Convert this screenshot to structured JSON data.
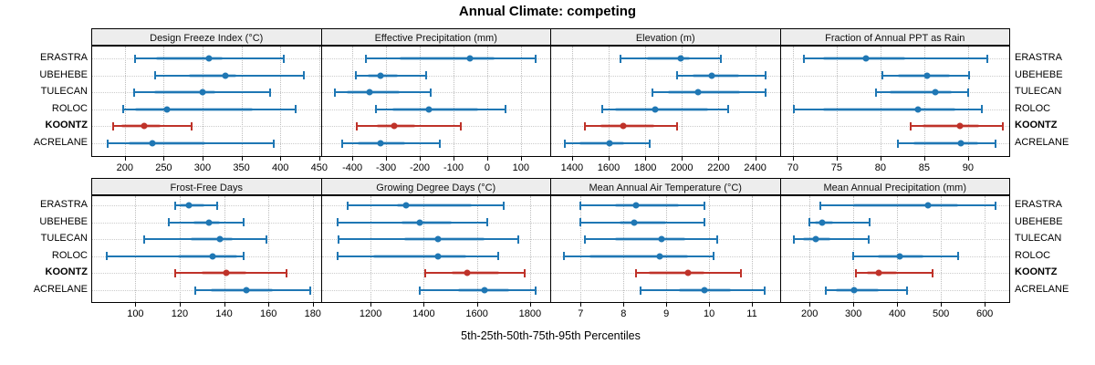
{
  "title": "Annual Climate: competing",
  "caption": "5th-25th-50th-75th-95th Percentiles",
  "colors": {
    "series_blue": "#1f77b4",
    "series_blue_band": "rgba(31,119,180,0.32)",
    "highlight_red": "#bf3229",
    "highlight_red_band": "rgba(191,50,41,0.32)",
    "strip_background": "#ededed",
    "grid": "#bdbdbd",
    "border": "#000000"
  },
  "chart_data": {
    "type": "percentile-dotplot",
    "percentile_labels": [
      "5th",
      "25th",
      "50th",
      "75th",
      "95th"
    ],
    "sites": [
      "ERASTRA",
      "UBEHEBE",
      "TULECAN",
      "ROLOC",
      "KOONTZ",
      "ACRELANE"
    ],
    "highlight_site": "KOONTZ",
    "legend_position": "none",
    "grid_on": true,
    "panels": [
      {
        "title": "Design Freeze Index (°C)",
        "row": 0,
        "col": 0,
        "domain": [
          158,
          452
        ],
        "ticks": [
          200,
          250,
          300,
          350,
          400,
          450
        ],
        "series": [
          [
            213,
            240,
            308,
            326,
            405
          ],
          [
            239,
            282,
            329,
            344,
            430
          ],
          [
            212,
            238,
            300,
            317,
            387
          ],
          [
            198,
            213,
            254,
            365,
            420
          ],
          [
            185,
            196,
            225,
            246,
            286
          ],
          [
            178,
            205,
            236,
            304,
            392
          ]
        ]
      },
      {
        "title": "Effective Precipitation (mm)",
        "row": 0,
        "col": 1,
        "domain": [
          -491,
          187
        ],
        "ticks": [
          -400,
          -300,
          -200,
          -100,
          0,
          100
        ],
        "series": [
          [
            -360,
            -260,
            -51,
            23,
            145
          ],
          [
            -390,
            -353,
            -316,
            -265,
            -182
          ],
          [
            -452,
            -416,
            -349,
            -260,
            -168
          ],
          [
            -331,
            -281,
            -173,
            -26,
            54
          ],
          [
            -386,
            -326,
            -277,
            -214,
            -78
          ],
          [
            -430,
            -385,
            -316,
            -242,
            -140
          ]
        ]
      },
      {
        "title": "Elevation (m)",
        "row": 0,
        "col": 2,
        "domain": [
          1286,
          2534
        ],
        "ticks": [
          1400,
          1600,
          1800,
          2000,
          2200,
          2400
        ],
        "series": [
          [
            1665,
            1810,
            1995,
            2045,
            2215
          ],
          [
            1975,
            2060,
            2165,
            2310,
            2455
          ],
          [
            1840,
            1925,
            2090,
            2315,
            2455
          ],
          [
            1565,
            1635,
            1855,
            2145,
            2255
          ],
          [
            1470,
            1555,
            1680,
            1850,
            1975
          ],
          [
            1360,
            1440,
            1605,
            1685,
            1825
          ]
        ]
      },
      {
        "title": "Fraction of Annual PPT as Rain",
        "row": 0,
        "col": 3,
        "domain": [
          68.6,
          94.7
        ],
        "ticks": [
          70,
          75,
          80,
          85,
          90
        ],
        "series": [
          [
            71.3,
            73.4,
            78.3,
            82.8,
            92.2
          ],
          [
            80.2,
            82.0,
            85.3,
            87.9,
            90.1
          ],
          [
            79.5,
            81.0,
            86.3,
            88.1,
            90.0
          ],
          [
            70.1,
            73.4,
            84.3,
            88.6,
            91.6
          ],
          [
            83.4,
            84.8,
            89.1,
            91.3,
            94.0
          ],
          [
            82.0,
            83.8,
            89.2,
            91.2,
            93.1
          ]
        ]
      },
      {
        "title": "Frost-Free Days",
        "row": 1,
        "col": 0,
        "domain": [
          80.5,
          183.6
        ],
        "ticks": [
          100,
          120,
          140,
          160,
          180
        ],
        "series": [
          [
            118,
            120,
            124,
            131,
            137
          ],
          [
            115,
            126,
            133,
            138,
            149
          ],
          [
            104,
            125,
            138,
            144,
            159
          ],
          [
            87,
            119,
            135,
            146,
            149
          ],
          [
            118,
            130,
            141,
            150,
            168
          ],
          [
            127,
            134,
            150,
            162,
            179
          ]
        ]
      },
      {
        "title": "Growing Degree Days (°C)",
        "row": 1,
        "col": 1,
        "domain": [
          1016,
          1876
        ],
        "ticks": [
          1200,
          1400,
          1600,
          1800
        ],
        "series": [
          [
            1115,
            1300,
            1335,
            1580,
            1700
          ],
          [
            1075,
            1315,
            1385,
            1505,
            1640
          ],
          [
            1080,
            1325,
            1455,
            1630,
            1755
          ],
          [
            1075,
            1210,
            1455,
            1560,
            1680
          ],
          [
            1405,
            1505,
            1565,
            1685,
            1780
          ],
          [
            1385,
            1530,
            1630,
            1720,
            1820
          ]
        ]
      },
      {
        "title": "Mean Annual Air Temperature (°C)",
        "row": 1,
        "col": 2,
        "domain": [
          6.31,
          11.65
        ],
        "ticks": [
          7,
          8,
          9,
          10,
          11
        ],
        "series": [
          [
            7.0,
            7.8,
            8.3,
            9.3,
            9.9
          ],
          [
            7.0,
            7.9,
            8.25,
            9.0,
            9.9
          ],
          [
            7.1,
            7.8,
            8.9,
            9.45,
            10.2
          ],
          [
            6.6,
            7.2,
            8.85,
            9.5,
            10.1
          ],
          [
            8.3,
            8.6,
            9.5,
            9.9,
            10.75
          ],
          [
            8.4,
            9.3,
            9.9,
            10.5,
            11.3
          ]
        ]
      },
      {
        "title": "Mean Annual Precipitation (mm)",
        "row": 1,
        "col": 3,
        "domain": [
          134,
          656
        ],
        "ticks": [
          200,
          300,
          400,
          500,
          600
        ],
        "series": [
          [
            225,
            300,
            470,
            540,
            625
          ],
          [
            199,
            212,
            228,
            254,
            337
          ],
          [
            165,
            186,
            215,
            248,
            335
          ],
          [
            300,
            355,
            405,
            460,
            540
          ],
          [
            305,
            330,
            358,
            400,
            480
          ],
          [
            238,
            260,
            302,
            358,
            422
          ]
        ]
      }
    ]
  }
}
